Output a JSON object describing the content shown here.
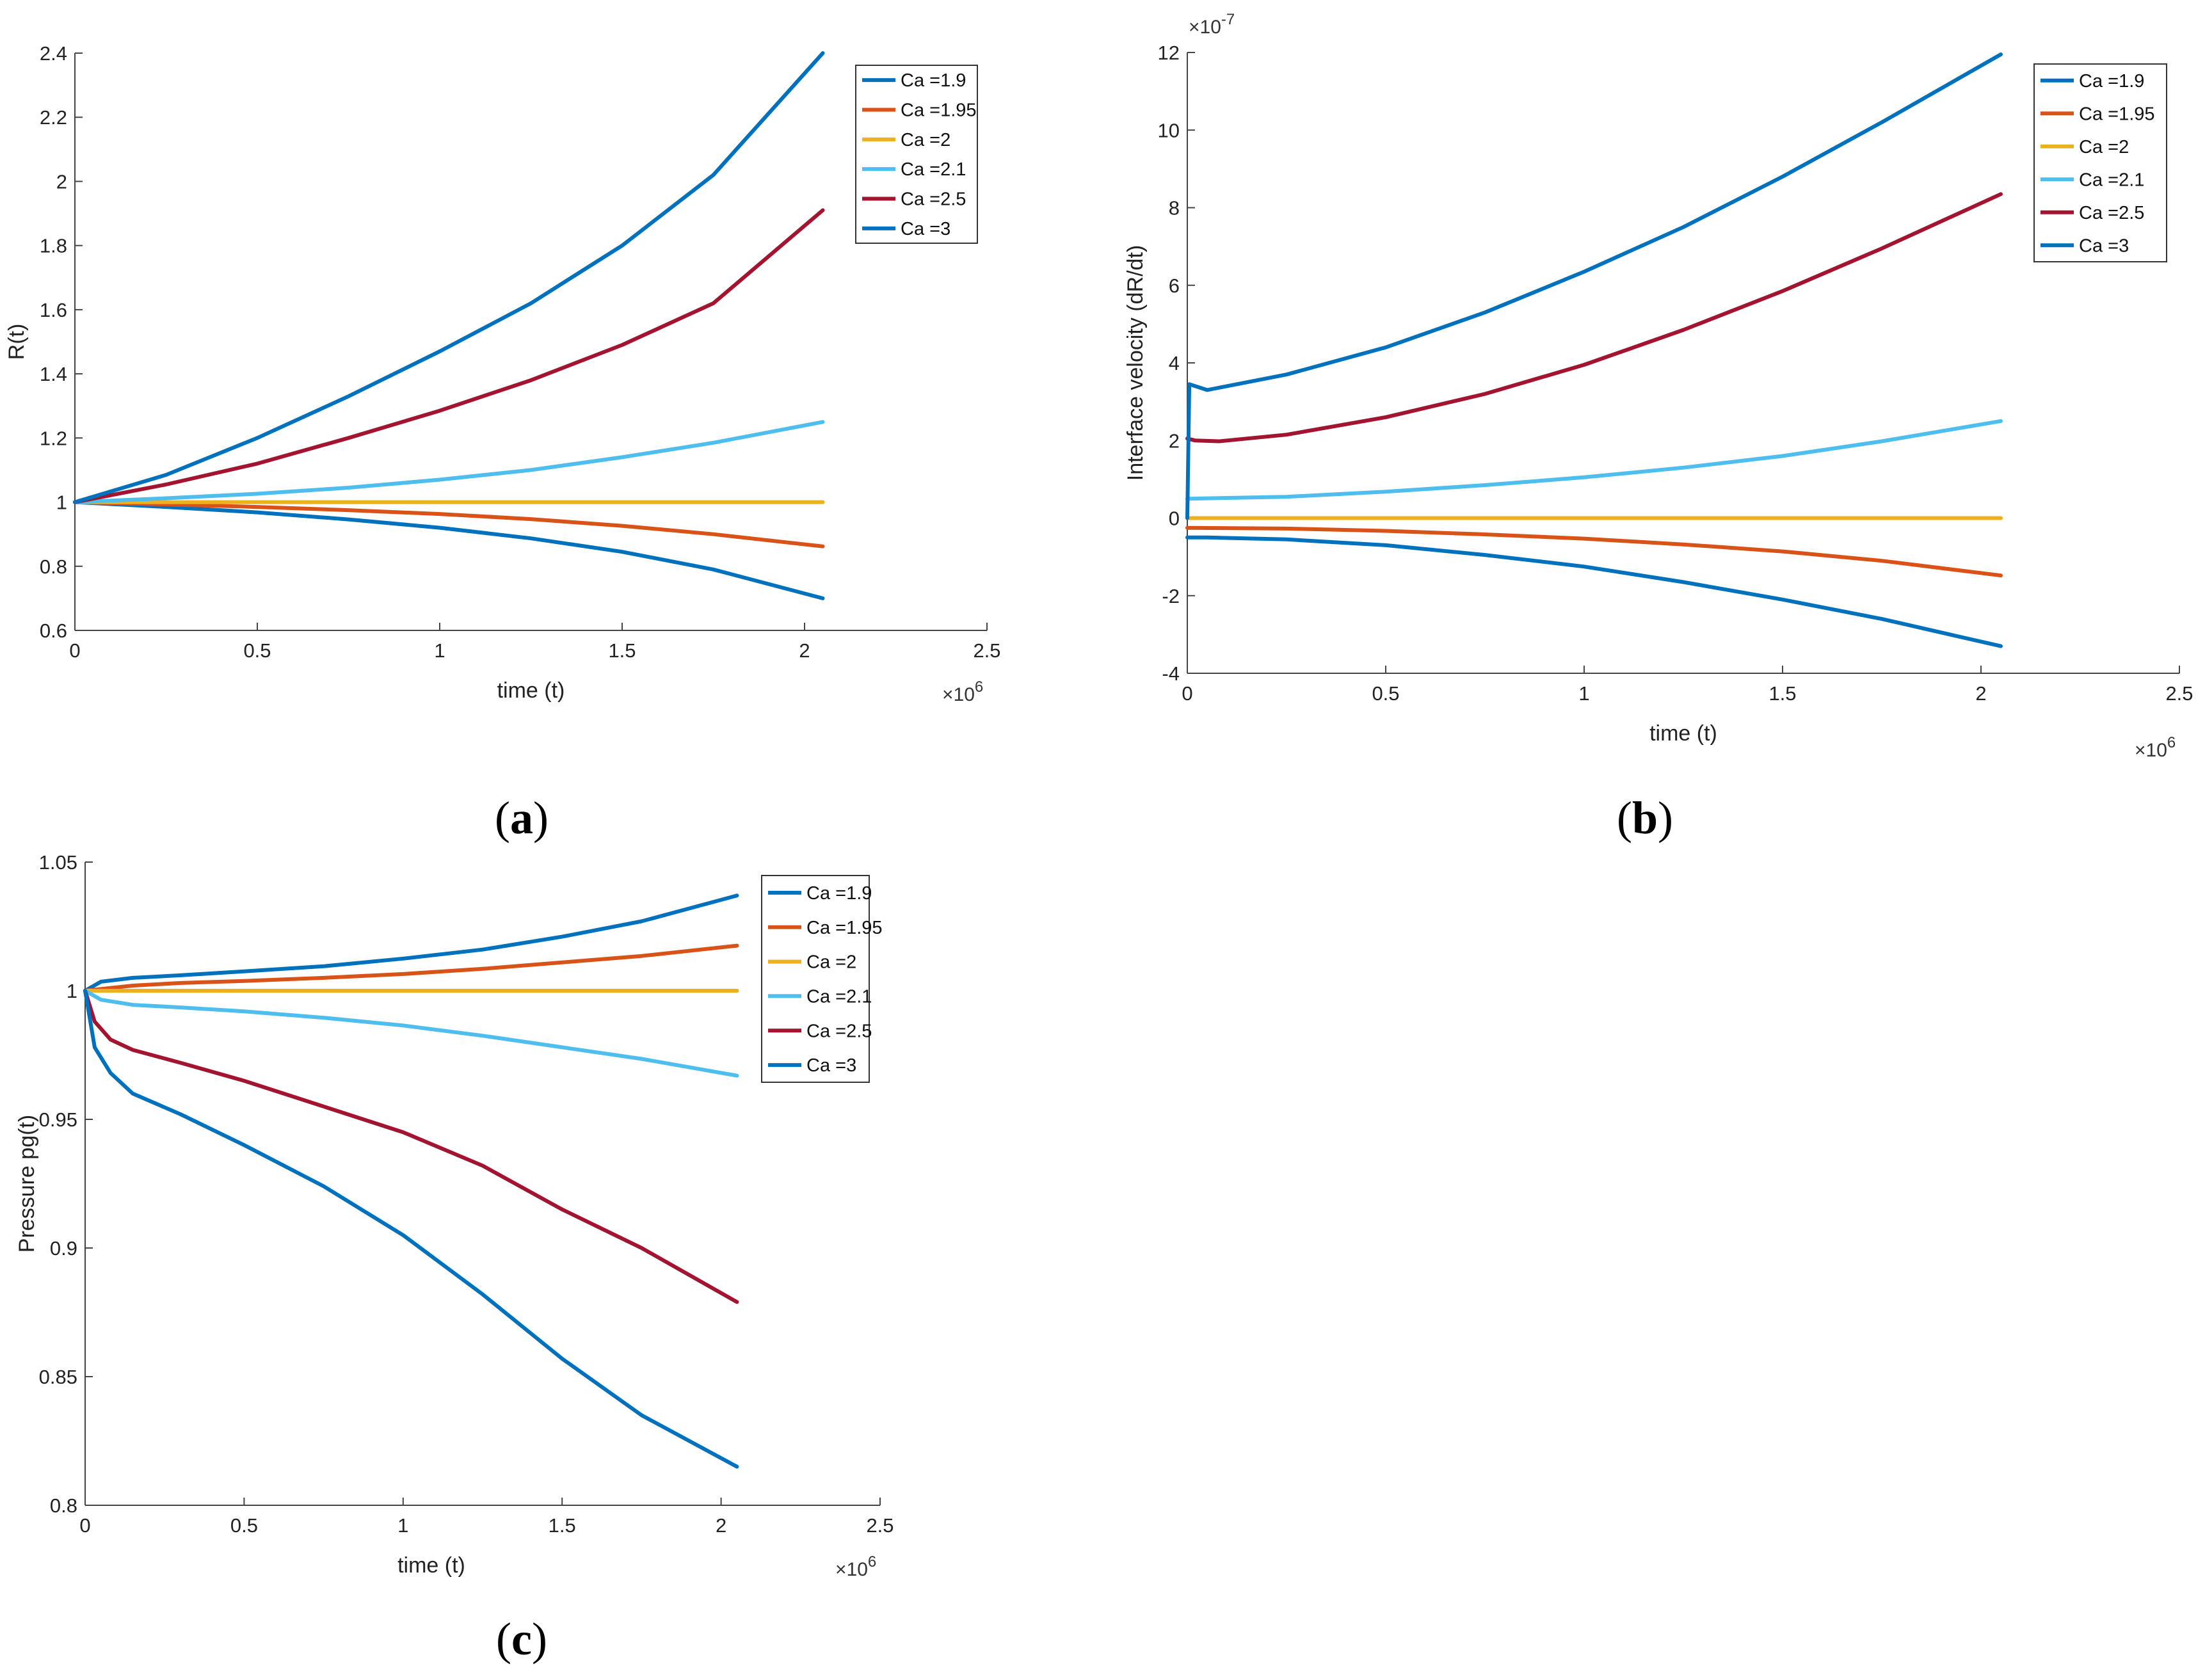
{
  "figure": {
    "panel_labels": [
      "(a)",
      "(b)",
      "(c)"
    ]
  },
  "chart_data": [
    {
      "id": "a",
      "type": "line",
      "xlabel": "time (t)",
      "ylabel": "R(t)",
      "x_multiplier": "×10^6",
      "xlim": [
        0,
        2.5
      ],
      "ylim": [
        0.6,
        2.4
      ],
      "xticks": [
        0,
        0.5,
        1,
        1.5,
        2,
        2.5
      ],
      "xtick_labels": [
        "0",
        "0.5",
        "1",
        "1.5",
        "2",
        "2.5"
      ],
      "yticks": [
        0.6,
        0.8,
        1,
        1.2,
        1.4,
        1.6,
        1.8,
        2,
        2.2,
        2.4
      ],
      "ytick_labels": [
        "0.6",
        "0.8",
        "1",
        "1.2",
        "1.4",
        "1.6",
        "1.8",
        "2",
        "2.2",
        "2.4"
      ],
      "y_exponent": "",
      "legend_position": "top-right",
      "series": [
        {
          "name": "Ca =1.9",
          "color": "#0072BD",
          "x": [
            0,
            0.25,
            0.5,
            0.75,
            1,
            1.25,
            1.5,
            1.75,
            2.05
          ],
          "values": [
            1,
            0.985,
            0.968,
            0.946,
            0.92,
            0.887,
            0.845,
            0.79,
            0.7
          ]
        },
        {
          "name": "Ca =1.95",
          "color": "#D95319",
          "x": [
            0,
            0.25,
            0.5,
            0.75,
            1,
            1.25,
            1.5,
            1.75,
            2.05
          ],
          "values": [
            1,
            0.993,
            0.985,
            0.975,
            0.963,
            0.947,
            0.926,
            0.9,
            0.862
          ]
        },
        {
          "name": "Ca =2",
          "color": "#EDB120",
          "x": [
            0,
            2.05
          ],
          "values": [
            1,
            1
          ]
        },
        {
          "name": "Ca =2.1",
          "color": "#4DBEEE",
          "x": [
            0,
            0.25,
            0.5,
            0.75,
            1,
            1.25,
            1.5,
            1.75,
            2.05
          ],
          "values": [
            1,
            1.012,
            1.026,
            1.045,
            1.07,
            1.1,
            1.14,
            1.185,
            1.25
          ]
        },
        {
          "name": "Ca =2.5",
          "color": "#A2142F",
          "x": [
            0,
            0.25,
            0.5,
            0.75,
            1,
            1.25,
            1.5,
            1.75,
            2.05
          ],
          "values": [
            1,
            1.055,
            1.12,
            1.2,
            1.285,
            1.38,
            1.49,
            1.62,
            1.91
          ]
        },
        {
          "name": "Ca =3",
          "color": "#0072BD",
          "x": [
            0,
            0.25,
            0.5,
            0.75,
            1,
            1.25,
            1.5,
            1.75,
            2.05
          ],
          "values": [
            1,
            1.085,
            1.2,
            1.33,
            1.47,
            1.62,
            1.8,
            2.02,
            2.4
          ]
        }
      ]
    },
    {
      "id": "b",
      "type": "line",
      "xlabel": "time (t)",
      "ylabel": "Interface velocity (dR/dt)",
      "x_multiplier": "×10^6",
      "y_exponent": "×10^-7",
      "xlim": [
        0,
        2.5
      ],
      "ylim": [
        -4,
        12
      ],
      "xticks": [
        0,
        0.5,
        1,
        1.5,
        2,
        2.5
      ],
      "xtick_labels": [
        "0",
        "0.5",
        "1",
        "1.5",
        "2",
        "2.5"
      ],
      "yticks": [
        -4,
        -2,
        0,
        2,
        4,
        6,
        8,
        10,
        12
      ],
      "ytick_labels": [
        "-4",
        "-2",
        "0",
        "2",
        "4",
        "6",
        "8",
        "10",
        "12"
      ],
      "legend_position": "top-right",
      "series": [
        {
          "name": "Ca =1.9",
          "color": "#0072BD",
          "x": [
            0,
            0.05,
            0.25,
            0.5,
            0.75,
            1,
            1.25,
            1.5,
            1.75,
            2.05
          ],
          "values": [
            -0.5,
            -0.5,
            -0.55,
            -0.7,
            -0.95,
            -1.25,
            -1.65,
            -2.1,
            -2.6,
            -3.3
          ]
        },
        {
          "name": "Ca =1.95",
          "color": "#D95319",
          "x": [
            0,
            0.25,
            0.5,
            0.75,
            1,
            1.25,
            1.5,
            1.75,
            2.05
          ],
          "values": [
            -0.25,
            -0.27,
            -0.33,
            -0.42,
            -0.53,
            -0.68,
            -0.86,
            -1.1,
            -1.48
          ]
        },
        {
          "name": "Ca =2",
          "color": "#EDB120",
          "x": [
            0,
            2.05
          ],
          "values": [
            0,
            0
          ]
        },
        {
          "name": "Ca =2.1",
          "color": "#4DBEEE",
          "x": [
            0,
            0.25,
            0.5,
            0.75,
            1,
            1.25,
            1.5,
            1.75,
            2.05
          ],
          "values": [
            0.5,
            0.55,
            0.68,
            0.85,
            1.05,
            1.3,
            1.6,
            1.98,
            2.5
          ]
        },
        {
          "name": "Ca =2.5",
          "color": "#A2142F",
          "x": [
            0,
            0.02,
            0.08,
            0.25,
            0.5,
            0.75,
            1,
            1.25,
            1.5,
            1.75,
            2.05
          ],
          "values": [
            2.05,
            2.0,
            1.98,
            2.15,
            2.6,
            3.2,
            3.95,
            4.85,
            5.85,
            6.95,
            8.35
          ]
        },
        {
          "name": "Ca =3",
          "color": "#0072BD",
          "x": [
            0,
            0.005,
            0.05,
            0.25,
            0.5,
            0.75,
            1,
            1.25,
            1.5,
            1.75,
            2.05
          ],
          "values": [
            0,
            3.45,
            3.3,
            3.7,
            4.4,
            5.3,
            6.35,
            7.5,
            8.8,
            10.2,
            11.95
          ]
        }
      ]
    },
    {
      "id": "c",
      "type": "line",
      "xlabel": "time (t)",
      "ylabel": "Pressure pg(t)",
      "x_multiplier": "×10^6",
      "y_exponent": "",
      "xlim": [
        0,
        2.5
      ],
      "ylim": [
        0.8,
        1.05
      ],
      "xticks": [
        0,
        0.5,
        1,
        1.5,
        2,
        2.5
      ],
      "xtick_labels": [
        "0",
        "0.5",
        "1",
        "1.5",
        "2",
        "2.5"
      ],
      "yticks": [
        0.8,
        0.85,
        0.9,
        0.95,
        1,
        1.05
      ],
      "ytick_labels": [
        "0.8",
        "0.85",
        "0.9",
        "0.95",
        "1",
        "1.05"
      ],
      "legend_position": "top-right",
      "series": [
        {
          "name": "Ca =1.9",
          "color": "#0072BD",
          "x": [
            0,
            0.05,
            0.15,
            0.3,
            0.5,
            0.75,
            1,
            1.25,
            1.5,
            1.75,
            2.05
          ],
          "values": [
            1,
            1.0035,
            1.005,
            1.006,
            1.0075,
            1.0095,
            1.0125,
            1.016,
            1.021,
            1.027,
            1.037
          ]
        },
        {
          "name": "Ca =1.95",
          "color": "#D95319",
          "x": [
            0,
            0.15,
            0.3,
            0.5,
            0.75,
            1,
            1.25,
            1.5,
            1.75,
            2.05
          ],
          "values": [
            1,
            1.002,
            1.003,
            1.0038,
            1.005,
            1.0065,
            1.0085,
            1.011,
            1.0135,
            1.0175
          ]
        },
        {
          "name": "Ca =2",
          "color": "#EDB120",
          "x": [
            0,
            2.05
          ],
          "values": [
            1,
            1
          ]
        },
        {
          "name": "Ca =2.1",
          "color": "#4DBEEE",
          "x": [
            0,
            0.05,
            0.15,
            0.3,
            0.5,
            0.75,
            1,
            1.25,
            1.5,
            1.75,
            2.05
          ],
          "values": [
            1,
            0.9965,
            0.9945,
            0.9935,
            0.992,
            0.9895,
            0.9865,
            0.9825,
            0.978,
            0.9735,
            0.967
          ]
        },
        {
          "name": "Ca =2.5",
          "color": "#A2142F",
          "x": [
            0,
            0.03,
            0.08,
            0.15,
            0.3,
            0.5,
            0.75,
            1,
            1.25,
            1.5,
            1.75,
            2.05
          ],
          "values": [
            1,
            0.988,
            0.981,
            0.977,
            0.972,
            0.965,
            0.955,
            0.945,
            0.932,
            0.915,
            0.9,
            0.879
          ]
        },
        {
          "name": "Ca =3",
          "color": "#0072BD",
          "x": [
            0,
            0.03,
            0.08,
            0.15,
            0.3,
            0.5,
            0.75,
            1,
            1.25,
            1.5,
            1.75,
            2.05
          ],
          "values": [
            1,
            0.978,
            0.968,
            0.96,
            0.952,
            0.94,
            0.924,
            0.905,
            0.882,
            0.857,
            0.835,
            0.815
          ]
        }
      ]
    }
  ]
}
